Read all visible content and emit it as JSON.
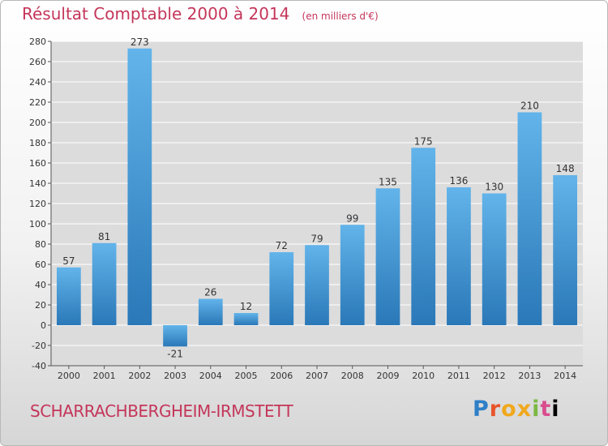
{
  "header": {
    "title": "Résultat Comptable 2000 à 2014",
    "unit": "(en milliers d'€)"
  },
  "footer": {
    "commune": "SCHARRACHBERGHEIM-IRMSTETT",
    "logo_letters": [
      "P",
      "r",
      "o",
      "x",
      "i",
      "t",
      "i"
    ]
  },
  "colors": {
    "bar_top": "#62b4ea",
    "bar_bottom": "#2a78b8",
    "title": "#c4365a",
    "grid": "#ffffff",
    "plot_bg": "#dcdcdc"
  },
  "chart_data": {
    "type": "bar",
    "title": "Résultat Comptable 2000 à 2014",
    "subtitle": "(en milliers d'€)",
    "xlabel": "",
    "ylabel": "",
    "categories": [
      "2000",
      "2001",
      "2002",
      "2003",
      "2004",
      "2005",
      "2006",
      "2007",
      "2008",
      "2009",
      "2010",
      "2011",
      "2012",
      "2013",
      "2014"
    ],
    "values": [
      57,
      81,
      273,
      -21,
      26,
      12,
      72,
      79,
      99,
      135,
      175,
      136,
      130,
      210,
      148
    ],
    "ylim": [
      -40,
      280
    ],
    "yticks": [
      -40,
      -20,
      0,
      20,
      40,
      60,
      80,
      100,
      120,
      140,
      160,
      180,
      200,
      220,
      240,
      260,
      280
    ],
    "grid": true,
    "legend": "none"
  }
}
